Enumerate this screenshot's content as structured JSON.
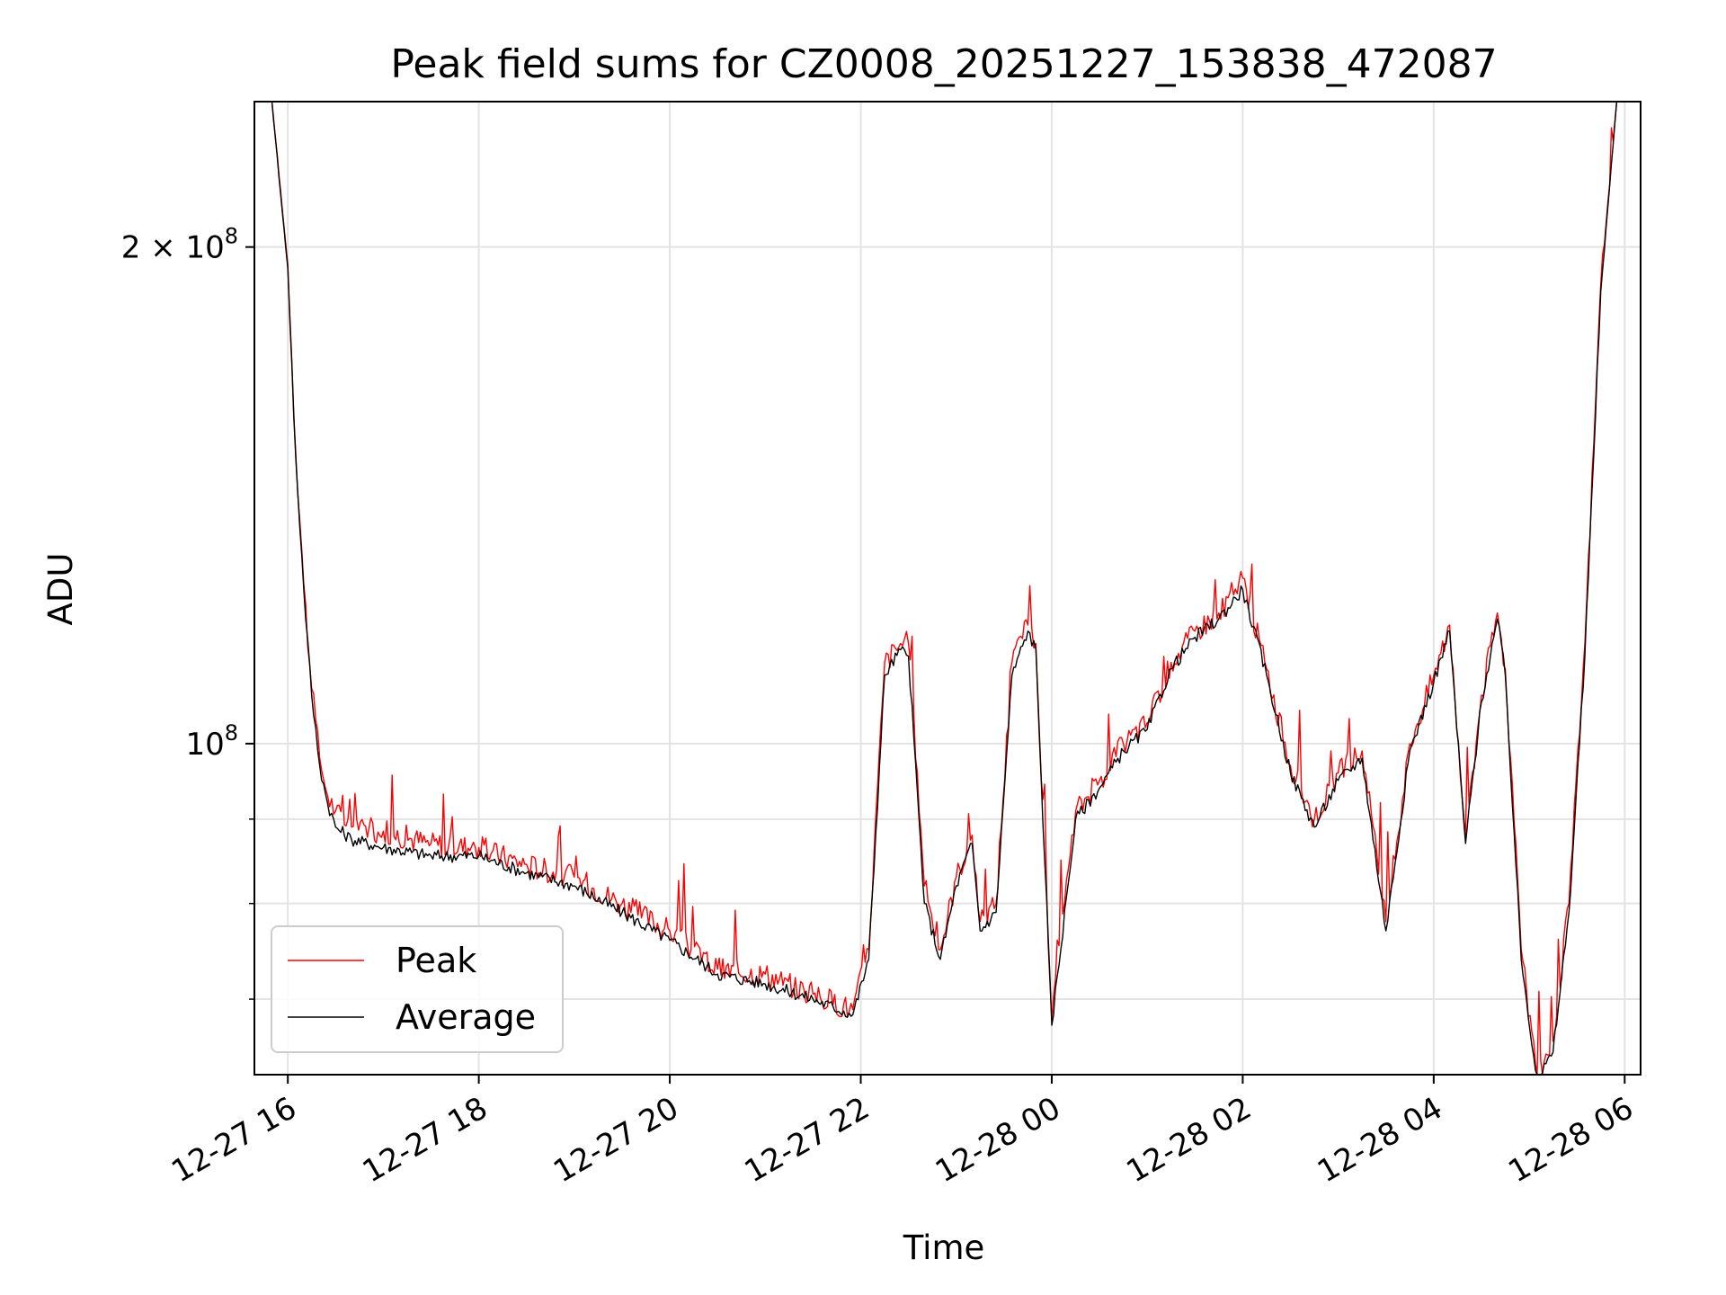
{
  "chart_data": {
    "type": "line",
    "title": "Peak field sums for CZ0008_20251227_153838_472087",
    "xlabel": "Time",
    "ylabel": "ADU",
    "yscale": "log",
    "grid": true,
    "legend_position": "lower-left",
    "xlim": [
      "2025-12-27 15:39",
      "2025-12-28 06:10"
    ],
    "ylim": [
      63000000,
      245000000
    ],
    "x_ticks": [
      {
        "value": "2025-12-27 16:00",
        "label": "12-27 16"
      },
      {
        "value": "2025-12-27 18:00",
        "label": "12-27 18"
      },
      {
        "value": "2025-12-27 20:00",
        "label": "12-27 20"
      },
      {
        "value": "2025-12-27 22:00",
        "label": "12-27 22"
      },
      {
        "value": "2025-12-28 00:00",
        "label": "12-28 00"
      },
      {
        "value": "2025-12-28 02:00",
        "label": "12-28 02"
      },
      {
        "value": "2025-12-28 04:00",
        "label": "12-28 04"
      },
      {
        "value": "2025-12-28 06:00",
        "label": "12-28 06"
      }
    ],
    "y_major_ticks": [
      {
        "value": 100000000,
        "base": "10",
        "exp": "8",
        "mult": ""
      },
      {
        "value": 200000000,
        "base": "10",
        "exp": "8",
        "mult": "2 × "
      }
    ],
    "y_minor_ticks": [
      70000000,
      80000000,
      90000000
    ],
    "series": [
      {
        "name": "Peak",
        "color": "#ff0000",
        "x": [
          "2025-12-27 15:50",
          "2025-12-27 16:00",
          "2025-12-27 16:05",
          "2025-12-27 16:10",
          "2025-12-27 16:15",
          "2025-12-27 16:20",
          "2025-12-27 16:25",
          "2025-12-27 16:30",
          "2025-12-27 16:40",
          "2025-12-27 17:00",
          "2025-12-27 17:30",
          "2025-12-27 18:00",
          "2025-12-27 18:30",
          "2025-12-27 19:00",
          "2025-12-27 19:30",
          "2025-12-27 20:00",
          "2025-12-27 20:30",
          "2025-12-27 21:00",
          "2025-12-27 21:30",
          "2025-12-27 21:55",
          "2025-12-27 22:05",
          "2025-12-27 22:15",
          "2025-12-27 22:25",
          "2025-12-27 22:30",
          "2025-12-27 22:40",
          "2025-12-27 22:50",
          "2025-12-27 23:00",
          "2025-12-27 23:10",
          "2025-12-27 23:15",
          "2025-12-27 23:25",
          "2025-12-27 23:35",
          "2025-12-27 23:45",
          "2025-12-27 23:50",
          "2025-12-28 00:00",
          "2025-12-28 00:15",
          "2025-12-28 00:30",
          "2025-12-28 00:45",
          "2025-12-28 01:00",
          "2025-12-28 01:15",
          "2025-12-28 01:30",
          "2025-12-28 01:45",
          "2025-12-28 02:00",
          "2025-12-28 02:15",
          "2025-12-28 02:30",
          "2025-12-28 02:45",
          "2025-12-28 03:00",
          "2025-12-28 03:15",
          "2025-12-28 03:30",
          "2025-12-28 03:45",
          "2025-12-28 04:00",
          "2025-12-28 04:10",
          "2025-12-28 04:20",
          "2025-12-28 04:30",
          "2025-12-28 04:40",
          "2025-12-28 04:45",
          "2025-12-28 04:55",
          "2025-12-28 05:05",
          "2025-12-28 05:15",
          "2025-12-28 05:25",
          "2025-12-28 05:35",
          "2025-12-28 05:45",
          "2025-12-28 05:55"
        ],
        "y": [
          245000000,
          195000000,
          150000000,
          125000000,
          108000000,
          98000000,
          93000000,
          91000000,
          89000000,
          88500000,
          87000000,
          86500000,
          84500000,
          83000000,
          80000000,
          77000000,
          73000000,
          72500000,
          70500000,
          69000000,
          75000000,
          112000000,
          115000000,
          115000000,
          82000000,
          75000000,
          83000000,
          88000000,
          78000000,
          80000000,
          112000000,
          118000000,
          115000000,
          68000000,
          91000000,
          95000000,
          100000000,
          103000000,
          112000000,
          117000000,
          120000000,
          126000000,
          111000000,
          97000000,
          90000000,
          96000000,
          99000000,
          78000000,
          100000000,
          110000000,
          118000000,
          88000000,
          107000000,
          120000000,
          111000000,
          75000000,
          63000000,
          66000000,
          80000000,
          115000000,
          190000000,
          245000000
        ]
      },
      {
        "name": "Average",
        "color": "#000000",
        "x": [
          "2025-12-27 15:50",
          "2025-12-27 16:00",
          "2025-12-27 16:05",
          "2025-12-27 16:10",
          "2025-12-27 16:15",
          "2025-12-27 16:20",
          "2025-12-27 16:25",
          "2025-12-27 16:30",
          "2025-12-27 16:40",
          "2025-12-27 17:00",
          "2025-12-27 17:30",
          "2025-12-27 18:00",
          "2025-12-27 18:30",
          "2025-12-27 19:00",
          "2025-12-27 19:30",
          "2025-12-27 20:00",
          "2025-12-27 20:30",
          "2025-12-27 21:00",
          "2025-12-27 21:30",
          "2025-12-27 21:55",
          "2025-12-27 22:05",
          "2025-12-27 22:15",
          "2025-12-27 22:25",
          "2025-12-27 22:30",
          "2025-12-27 22:40",
          "2025-12-27 22:50",
          "2025-12-27 23:00",
          "2025-12-27 23:10",
          "2025-12-27 23:15",
          "2025-12-27 23:25",
          "2025-12-27 23:35",
          "2025-12-27 23:45",
          "2025-12-27 23:50",
          "2025-12-28 00:00",
          "2025-12-28 00:15",
          "2025-12-28 00:30",
          "2025-12-28 00:45",
          "2025-12-28 01:00",
          "2025-12-28 01:15",
          "2025-12-28 01:30",
          "2025-12-28 01:45",
          "2025-12-28 02:00",
          "2025-12-28 02:15",
          "2025-12-28 02:30",
          "2025-12-28 02:45",
          "2025-12-28 03:00",
          "2025-12-28 03:15",
          "2025-12-28 03:30",
          "2025-12-28 03:45",
          "2025-12-28 04:00",
          "2025-12-28 04:10",
          "2025-12-28 04:20",
          "2025-12-28 04:30",
          "2025-12-28 04:40",
          "2025-12-28 04:45",
          "2025-12-28 04:55",
          "2025-12-28 05:05",
          "2025-12-28 05:15",
          "2025-12-28 05:25",
          "2025-12-28 05:35",
          "2025-12-28 05:45",
          "2025-12-28 05:55"
        ],
        "y": [
          245000000,
          194000000,
          149000000,
          124000000,
          107000000,
          97000000,
          92000000,
          89000000,
          87500000,
          86500000,
          85500000,
          85500000,
          83500000,
          82000000,
          79000000,
          76000000,
          72500000,
          71500000,
          70000000,
          68500000,
          74000000,
          110000000,
          114000000,
          113000000,
          80000000,
          74000000,
          82000000,
          87000000,
          77000000,
          79000000,
          110000000,
          117000000,
          114000000,
          67500000,
          90000000,
          94000000,
          99000000,
          102000000,
          111000000,
          116000000,
          119000000,
          124000000,
          110000000,
          96000000,
          89000000,
          95000000,
          98000000,
          77000000,
          99000000,
          109000000,
          117000000,
          87000000,
          106000000,
          119000000,
          110000000,
          74000000,
          62500000,
          65000000,
          79000000,
          113000000,
          188000000,
          245000000
        ]
      }
    ]
  }
}
